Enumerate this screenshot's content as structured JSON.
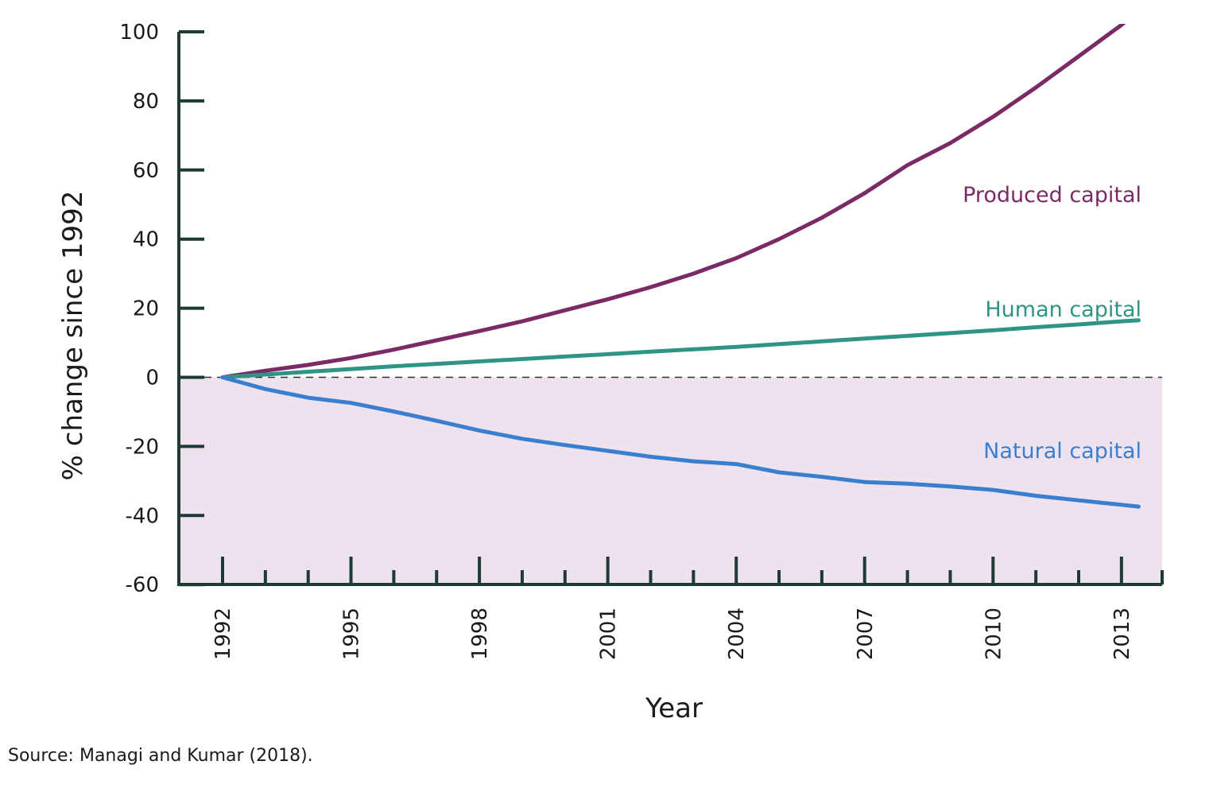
{
  "source": "Source: Managi and Kumar (2018).",
  "colors": {
    "produced": "#7b2a66",
    "human": "#2f9484",
    "natural": "#3a7fcf",
    "negative_region": "#efe2ef",
    "axis": "#1e3a34"
  },
  "chart_data": {
    "type": "line",
    "title": "",
    "xlabel": "Year",
    "ylabel": "% change since 1992",
    "xlim": [
      1991,
      2014.3
    ],
    "ylim": [
      -60,
      100
    ],
    "yticks": [
      100,
      80,
      60,
      40,
      20,
      0,
      -20,
      -40,
      -60
    ],
    "xticks_labeled": [
      "1992",
      "1995",
      "1998",
      "2001",
      "2004",
      "2007",
      "2010",
      "2013"
    ],
    "x": [
      1992,
      1993,
      1994,
      1995,
      1996,
      1997,
      1998,
      1999,
      2000,
      2001,
      2002,
      2003,
      2004,
      2005,
      2006,
      2007,
      2008,
      2009,
      2010,
      2011,
      2012,
      2013,
      2014
    ],
    "zero_line": "dashed",
    "negative_region_shaded": true,
    "grid": false,
    "series": [
      {
        "name": "Produced capital",
        "color": "#7b2a66",
        "values": [
          0,
          1.9,
          3.6,
          5.6,
          8.0,
          10.7,
          13.4,
          16.2,
          19.4,
          22.6,
          26.1,
          30.0,
          34.5,
          40.0,
          46.2,
          53.3,
          61.4,
          67.8,
          75.4,
          83.9,
          92.9,
          102.0,
          111.9
        ]
      },
      {
        "name": "Human capital",
        "color": "#2f9484",
        "values": [
          0,
          0.8,
          1.6,
          2.4,
          3.2,
          3.9,
          4.6,
          5.3,
          6.0,
          6.7,
          7.4,
          8.1,
          8.8,
          9.6,
          10.4,
          11.2,
          12.0,
          12.8,
          13.6,
          14.5,
          15.3,
          16.2,
          17.0
        ]
      },
      {
        "name": "Natural capital",
        "color": "#3a7fcf",
        "values": [
          0,
          -3.4,
          -5.9,
          -7.4,
          -9.9,
          -12.6,
          -15.4,
          -17.8,
          -19.6,
          -21.3,
          -23.0,
          -24.3,
          -25.1,
          -27.5,
          -28.8,
          -30.3,
          -30.8,
          -31.6,
          -32.6,
          -34.3,
          -35.6,
          -36.9,
          -38.2
        ]
      }
    ]
  }
}
